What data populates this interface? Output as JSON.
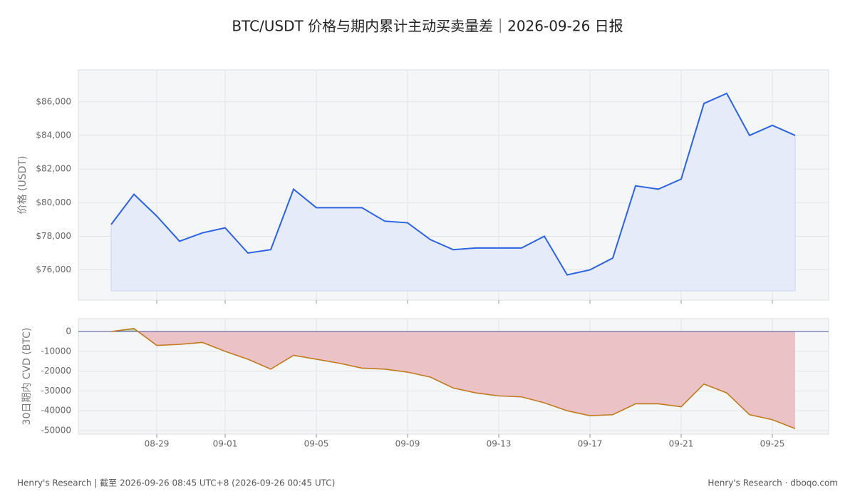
{
  "title": "BTC/USDT 价格与期内累计主动买卖量差｜2026-09-26 日报",
  "footer_left": "Henry's Research | 截至 2026-09-26 08:45 UTC+8 (2026-09-26 00:45 UTC)",
  "footer_right": "Henry's Research · dboqo.com",
  "chart_data": [
    {
      "type": "line",
      "ylabel": "价格 (USDT)",
      "x": [
        "08-27",
        "08-28",
        "08-29",
        "08-30",
        "08-31",
        "09-01",
        "09-02",
        "09-03",
        "09-04",
        "09-05",
        "09-06",
        "09-07",
        "09-08",
        "09-09",
        "09-10",
        "09-11",
        "09-12",
        "09-13",
        "09-14",
        "09-15",
        "09-16",
        "09-17",
        "09-18",
        "09-19",
        "09-20",
        "09-21",
        "09-22",
        "09-23",
        "09-24",
        "09-25",
        "09-26"
      ],
      "series": [
        {
          "name": "价格",
          "color": "#2b63e3",
          "fill": "#e5ebf8",
          "values": [
            78700,
            80500,
            79200,
            77700,
            78200,
            78500,
            77000,
            77200,
            80800,
            79700,
            79700,
            79700,
            78900,
            78800,
            77800,
            77200,
            77300,
            77300,
            77300,
            78000,
            75700,
            76000,
            76700,
            81000,
            80800,
            81400,
            85900,
            86500,
            84000,
            84600,
            84000
          ]
        }
      ],
      "ylim": [
        74200,
        87900
      ],
      "yticks": [
        {
          "value": 76000,
          "label": "$76,000"
        },
        {
          "value": 78000,
          "label": "$78,000"
        },
        {
          "value": 80000,
          "label": "$80,000"
        },
        {
          "value": 82000,
          "label": "$82,000"
        },
        {
          "value": 84000,
          "label": "$84,000"
        },
        {
          "value": 86000,
          "label": "$86,000"
        }
      ],
      "grid": true
    },
    {
      "type": "area_line",
      "ylabel": "30日期内 CVD (BTC)",
      "x": [
        "08-27",
        "08-28",
        "08-29",
        "08-30",
        "08-31",
        "09-01",
        "09-02",
        "09-03",
        "09-04",
        "09-05",
        "09-06",
        "09-07",
        "09-08",
        "09-09",
        "09-10",
        "09-11",
        "09-12",
        "09-13",
        "09-14",
        "09-15",
        "09-16",
        "09-17",
        "09-18",
        "09-19",
        "09-20",
        "09-21",
        "09-22",
        "09-23",
        "09-24",
        "09-25",
        "09-26"
      ],
      "series": [
        {
          "name": "CVD",
          "color": "#c07a1f",
          "values": [
            0,
            1500,
            -7000,
            -6500,
            -5500,
            -10000,
            -14000,
            -19000,
            -12000,
            -14000,
            -16000,
            -18500,
            -19000,
            -20500,
            -23000,
            -28500,
            -31000,
            -32500,
            -33000,
            -36000,
            -40000,
            -42500,
            -42000,
            -36500,
            -36500,
            -38000,
            -26500,
            -31000,
            -42000,
            -44500,
            -49000
          ]
        }
      ],
      "positive_color": "#b9d3b0",
      "negative_color": "#ebc3c6",
      "zero_line_color": "#4b4f9a",
      "ylim": [
        -51800,
        6500
      ],
      "yticks": [
        -50000,
        -40000,
        -30000,
        -20000,
        -10000,
        0
      ],
      "xticks": [
        "08-29",
        "09-01",
        "09-05",
        "09-09",
        "09-13",
        "09-17",
        "09-21",
        "09-25"
      ],
      "grid": true
    }
  ]
}
